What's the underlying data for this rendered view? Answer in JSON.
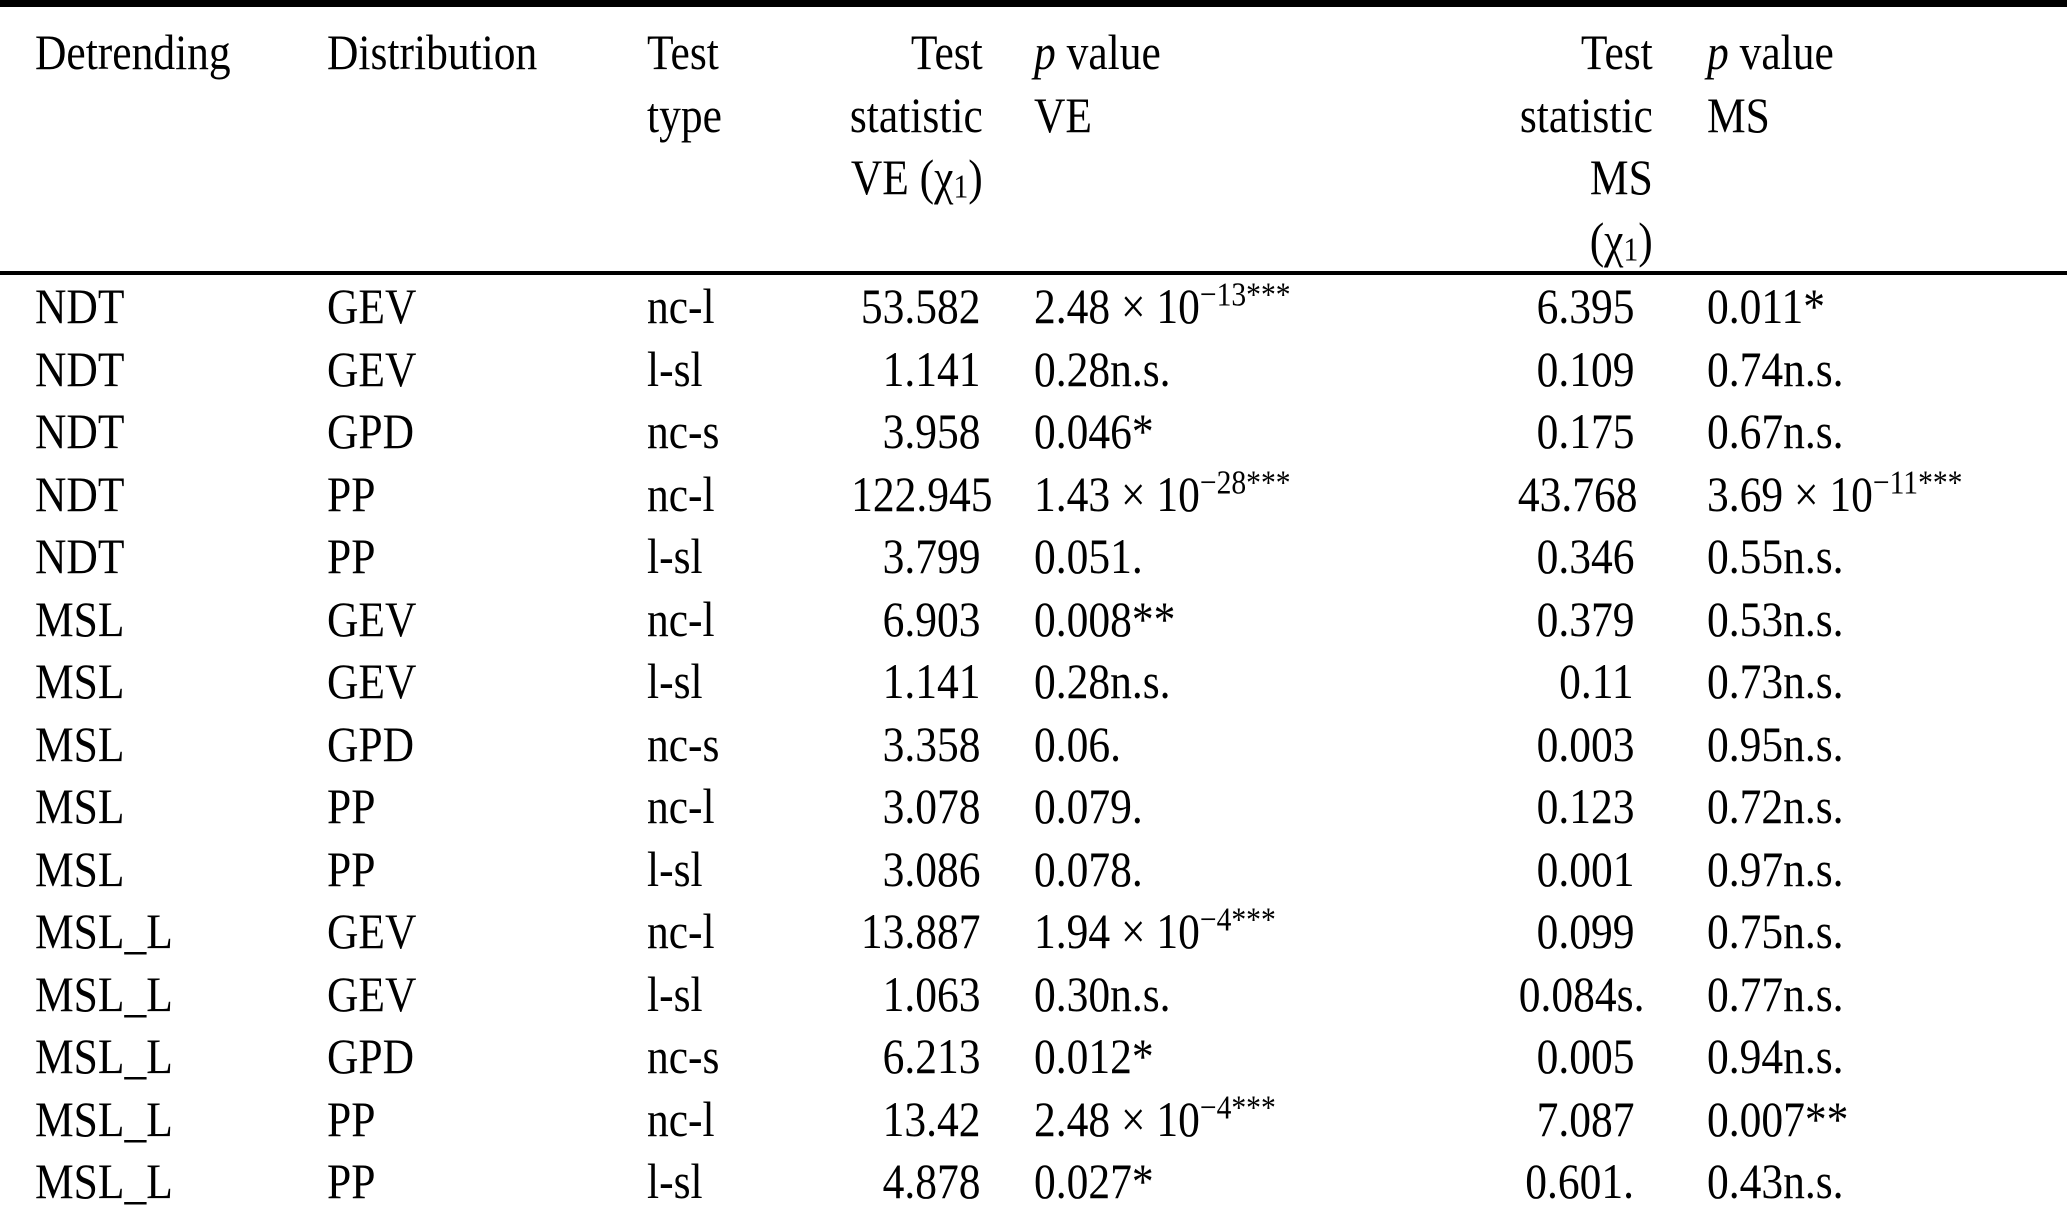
{
  "colors": {
    "text": "#000000",
    "background": "#ffffff",
    "rule": "#000000"
  },
  "table": {
    "columns": [
      {
        "id": "detrending",
        "align": "left",
        "header_lines": [
          "Detrending"
        ]
      },
      {
        "id": "distribution",
        "align": "left",
        "header_lines": [
          "Distribution"
        ]
      },
      {
        "id": "test-type",
        "align": "left",
        "header_lines": [
          "Test",
          "type"
        ]
      },
      {
        "id": "test-statistic-ve",
        "align": "right",
        "header_lines": [
          "Test",
          "statistic",
          {
            "pre": "VE (χ",
            "sub": "1",
            "post": ")"
          }
        ]
      },
      {
        "id": "p-value-ve",
        "align": "left",
        "header_lines": [
          {
            "italic": "p",
            "post": " value"
          },
          "VE"
        ]
      },
      {
        "id": "test-statistic-ms",
        "align": "right",
        "header_lines": [
          "Test",
          "statistic",
          {
            "pre": "MS (χ",
            "sub": "1",
            "post": ")"
          }
        ]
      },
      {
        "id": "p-value-ms",
        "align": "left",
        "header_lines": [
          {
            "italic": "p",
            "post": " value"
          },
          "MS"
        ]
      }
    ],
    "rows": [
      [
        "NDT",
        "GEV",
        "nc-l",
        "53.582",
        {
          "sci": {
            "mantissa": "2.48",
            "exponent": "−13",
            "stars": "***"
          }
        },
        "6.395",
        "0.011*"
      ],
      [
        "NDT",
        "GEV",
        "l-sl",
        "1.141",
        "0.28n.s.",
        "0.109",
        "0.74n.s."
      ],
      [
        "NDT",
        "GPD",
        "nc-s",
        "3.958",
        "0.046*",
        "0.175",
        "0.67n.s."
      ],
      [
        "NDT",
        "PP",
        "nc-l",
        "122.945",
        {
          "sci": {
            "mantissa": "1.43",
            "exponent": "−28",
            "stars": "***"
          }
        },
        "43.768",
        {
          "sci": {
            "mantissa": "3.69",
            "exponent": "−11",
            "stars": "***"
          }
        }
      ],
      [
        "NDT",
        "PP",
        "l-sl",
        "3.799",
        "0.051.",
        "0.346",
        "0.55n.s."
      ],
      [
        "MSL",
        "GEV",
        "nc-l",
        "6.903",
        "0.008**",
        "0.379",
        "0.53n.s."
      ],
      [
        "MSL",
        "GEV",
        "l-sl",
        "1.141",
        "0.28n.s.",
        "0.11",
        "0.73n.s."
      ],
      [
        "MSL",
        "GPD",
        "nc-s",
        "3.358",
        "0.06.",
        "0.003",
        "0.95n.s."
      ],
      [
        "MSL",
        "PP",
        "nc-l",
        "3.078",
        "0.079.",
        "0.123",
        "0.72n.s."
      ],
      [
        "MSL",
        "PP",
        "l-sl",
        "3.086",
        "0.078.",
        "0.001",
        "0.97n.s."
      ],
      [
        "MSL_L",
        "GEV",
        "nc-l",
        "13.887",
        {
          "sci": {
            "mantissa": "1.94",
            "exponent": "−4",
            "stars": "***"
          }
        },
        "0.099",
        "0.75n.s."
      ],
      [
        "MSL_L",
        "GEV",
        "l-sl",
        "1.063",
        "0.30n.s.",
        "0.084s.",
        "0.77n.s."
      ],
      [
        "MSL_L",
        "GPD",
        "nc-s",
        "6.213",
        "0.012*",
        "0.005",
        "0.94n.s."
      ],
      [
        "MSL_L",
        "PP",
        "nc-l",
        "13.42",
        {
          "sci": {
            "mantissa": "2.48",
            "exponent": "−4",
            "stars": "***"
          }
        },
        "7.087",
        "0.007**"
      ],
      [
        "MSL_L",
        "PP",
        "l-sl",
        "4.878",
        "0.027*",
        "0.601.",
        "0.43n.s."
      ]
    ]
  }
}
